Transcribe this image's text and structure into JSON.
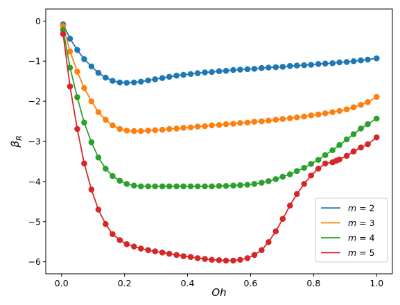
{
  "chart_data": {
    "type": "line",
    "xlabel": "Oh",
    "ylabel_main": "β",
    "ylabel_sub": "R",
    "xlim": [
      -0.05,
      1.05
    ],
    "ylim": [
      -6.3,
      0.3
    ],
    "xticks": [
      0.0,
      0.2,
      0.4,
      0.6,
      0.8,
      1.0
    ],
    "xtick_labels": [
      "0.0",
      "0.2",
      "0.4",
      "0.6",
      "0.8",
      "1.0"
    ],
    "yticks": [
      0,
      -1,
      -2,
      -3,
      -4,
      -5,
      -6
    ],
    "ytick_labels": [
      "0",
      "−1",
      "−2",
      "−3",
      "−4",
      "−5",
      "−6"
    ],
    "legend_position": "lower-right",
    "series": [
      {
        "name": "m =  2",
        "legend_var": "m",
        "legend_rest": " =  2",
        "color": "#1f77b4",
        "x": [
          0.005,
          0.027,
          0.05,
          0.072,
          0.095,
          0.117,
          0.14,
          0.162,
          0.185,
          0.207,
          0.23,
          0.252,
          0.275,
          0.297,
          0.32,
          0.342,
          0.365,
          0.387,
          0.41,
          0.432,
          0.455,
          0.477,
          0.5,
          0.522,
          0.545,
          0.567,
          0.59,
          0.612,
          0.635,
          0.657,
          0.68,
          0.702,
          0.725,
          0.747,
          0.77,
          0.792,
          0.815,
          0.837,
          0.86,
          0.882,
          0.905,
          0.927,
          0.95,
          0.972,
          1.0
        ],
        "y": [
          -0.08,
          -0.44,
          -0.72,
          -0.95,
          -1.13,
          -1.29,
          -1.41,
          -1.49,
          -1.53,
          -1.54,
          -1.53,
          -1.51,
          -1.48,
          -1.45,
          -1.42,
          -1.39,
          -1.36,
          -1.34,
          -1.32,
          -1.3,
          -1.28,
          -1.27,
          -1.25,
          -1.24,
          -1.22,
          -1.21,
          -1.2,
          -1.19,
          -1.17,
          -1.16,
          -1.15,
          -1.14,
          -1.12,
          -1.11,
          -1.1,
          -1.09,
          -1.07,
          -1.06,
          -1.05,
          -1.03,
          -1.02,
          -1.0,
          -0.98,
          -0.96,
          -0.93
        ]
      },
      {
        "name": "m =  3",
        "legend_var": "m",
        "legend_rest": " =  3",
        "color": "#ff7f0e",
        "x": [
          0.005,
          0.027,
          0.05,
          0.072,
          0.095,
          0.117,
          0.14,
          0.162,
          0.185,
          0.207,
          0.23,
          0.252,
          0.275,
          0.297,
          0.32,
          0.342,
          0.365,
          0.387,
          0.41,
          0.432,
          0.455,
          0.477,
          0.5,
          0.522,
          0.545,
          0.567,
          0.59,
          0.612,
          0.635,
          0.657,
          0.68,
          0.702,
          0.725,
          0.747,
          0.77,
          0.792,
          0.815,
          0.837,
          0.86,
          0.882,
          0.905,
          0.927,
          0.95,
          0.972,
          1.0
        ],
        "y": [
          -0.12,
          -0.76,
          -1.26,
          -1.67,
          -2.0,
          -2.27,
          -2.46,
          -2.6,
          -2.69,
          -2.73,
          -2.74,
          -2.74,
          -2.73,
          -2.72,
          -2.71,
          -2.69,
          -2.68,
          -2.66,
          -2.65,
          -2.63,
          -2.62,
          -2.6,
          -2.59,
          -2.57,
          -2.56,
          -2.54,
          -2.53,
          -2.51,
          -2.5,
          -2.48,
          -2.46,
          -2.44,
          -2.42,
          -2.4,
          -2.38,
          -2.35,
          -2.33,
          -2.3,
          -2.27,
          -2.24,
          -2.2,
          -2.15,
          -2.09,
          -2.02,
          -1.89
        ]
      },
      {
        "name": "m =  4",
        "legend_var": "m",
        "legend_rest": " =  4",
        "color": "#2ca02c",
        "x": [
          0.005,
          0.027,
          0.05,
          0.072,
          0.095,
          0.117,
          0.14,
          0.162,
          0.185,
          0.207,
          0.23,
          0.252,
          0.275,
          0.297,
          0.32,
          0.342,
          0.365,
          0.387,
          0.41,
          0.432,
          0.455,
          0.477,
          0.5,
          0.522,
          0.545,
          0.567,
          0.59,
          0.612,
          0.635,
          0.657,
          0.68,
          0.702,
          0.725,
          0.747,
          0.77,
          0.792,
          0.815,
          0.837,
          0.86,
          0.882,
          0.905,
          0.927,
          0.95,
          0.972,
          1.0
        ],
        "y": [
          -0.22,
          -1.16,
          -1.9,
          -2.53,
          -3.02,
          -3.4,
          -3.68,
          -3.86,
          -3.98,
          -4.06,
          -4.1,
          -4.12,
          -4.12,
          -4.12,
          -4.12,
          -4.12,
          -4.12,
          -4.12,
          -4.12,
          -4.12,
          -4.12,
          -4.12,
          -4.11,
          -4.11,
          -4.1,
          -4.09,
          -4.08,
          -4.06,
          -4.03,
          -3.99,
          -3.94,
          -3.88,
          -3.82,
          -3.74,
          -3.66,
          -3.56,
          -3.46,
          -3.34,
          -3.22,
          -3.09,
          -2.95,
          -2.82,
          -2.68,
          -2.57,
          -2.43
        ]
      },
      {
        "name": "m =  5",
        "legend_var": "m",
        "legend_rest": " =  5",
        "color": "#d62728",
        "x": [
          0.005,
          0.027,
          0.05,
          0.072,
          0.095,
          0.117,
          0.14,
          0.162,
          0.185,
          0.207,
          0.23,
          0.252,
          0.275,
          0.297,
          0.32,
          0.342,
          0.365,
          0.387,
          0.41,
          0.432,
          0.455,
          0.477,
          0.5,
          0.522,
          0.545,
          0.567,
          0.59,
          0.612,
          0.635,
          0.657,
          0.68,
          0.702,
          0.725,
          0.747,
          0.77,
          0.792,
          0.815,
          0.837,
          0.86,
          0.872,
          0.882,
          0.905,
          0.927,
          0.95,
          0.972,
          1.0
        ],
        "y": [
          -0.32,
          -1.63,
          -2.69,
          -3.55,
          -4.2,
          -4.7,
          -5.06,
          -5.31,
          -5.46,
          -5.56,
          -5.62,
          -5.67,
          -5.71,
          -5.74,
          -5.77,
          -5.8,
          -5.83,
          -5.86,
          -5.88,
          -5.91,
          -5.93,
          -5.95,
          -5.96,
          -5.97,
          -5.97,
          -5.95,
          -5.91,
          -5.83,
          -5.71,
          -5.51,
          -5.24,
          -4.93,
          -4.6,
          -4.31,
          -4.06,
          -3.85,
          -3.68,
          -3.55,
          -3.52,
          -3.48,
          -3.45,
          -3.36,
          -3.25,
          -3.15,
          -3.07,
          -2.9
        ]
      }
    ]
  }
}
